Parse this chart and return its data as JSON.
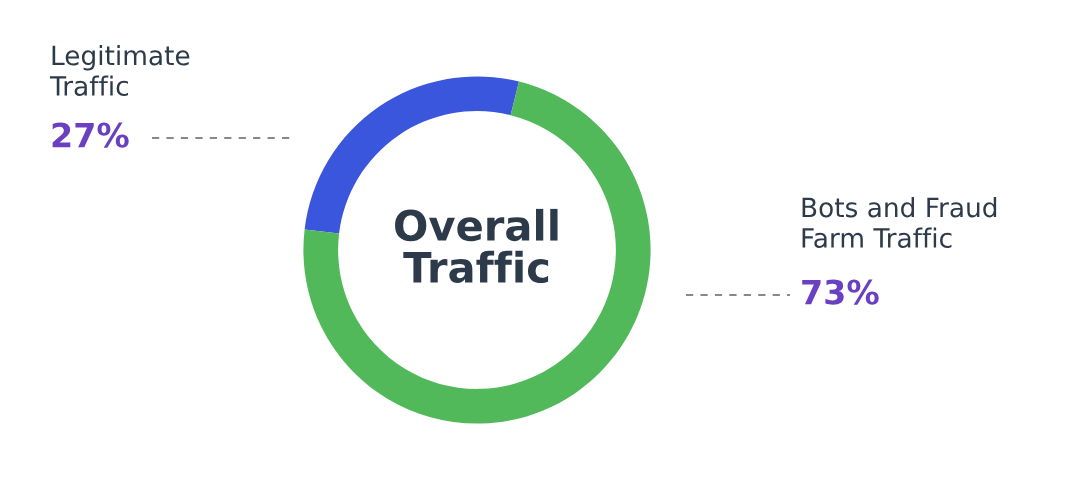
{
  "chart_data": {
    "type": "donut",
    "title": "Overall\nTraffic",
    "categories": [
      "Legitimate\nTraffic",
      "Bots and Fraud\nFarm Traffic"
    ],
    "values": [
      27,
      73
    ],
    "colors": [
      "#3a56dc",
      "#52b95b"
    ],
    "value_labels": [
      "27%",
      "73%"
    ]
  }
}
